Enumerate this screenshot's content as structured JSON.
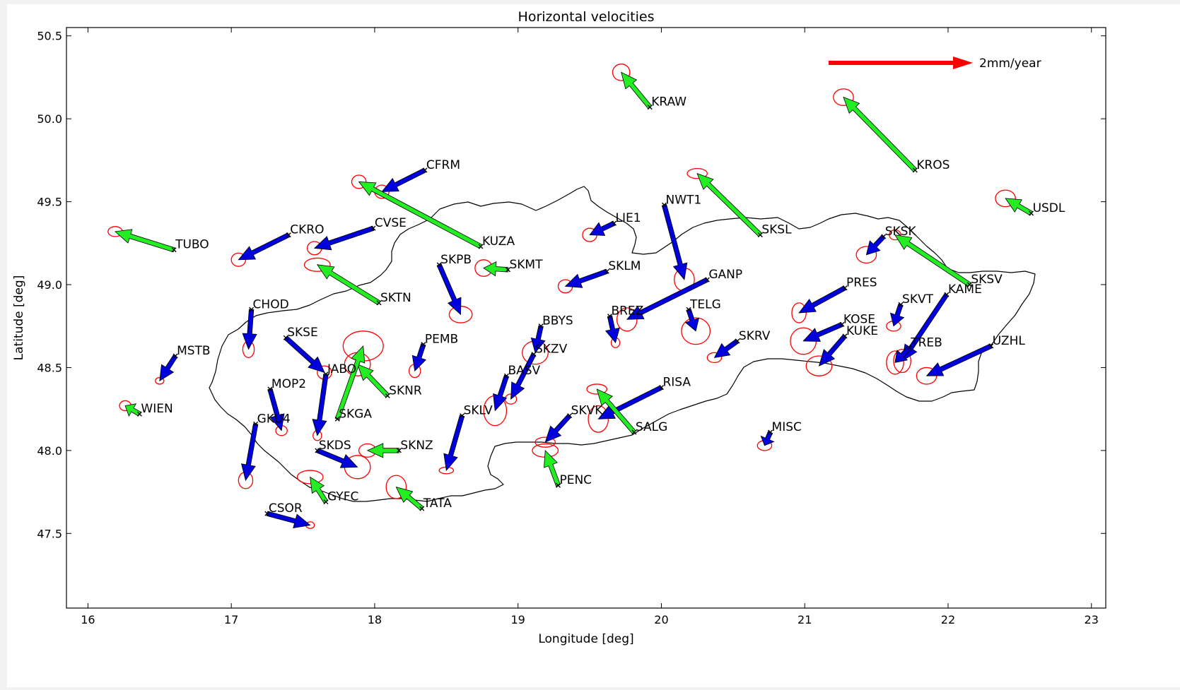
{
  "chart_data": {
    "type": "scatter",
    "title": "Horizontal velocities",
    "xlabel": "Longitude [deg]",
    "ylabel": "Latitude [deg]",
    "xlim": [
      15.85,
      23.1
    ],
    "ylim": [
      47.05,
      50.55
    ],
    "xticks": [
      16,
      17,
      18,
      19,
      20,
      21,
      22,
      23
    ],
    "yticks": [
      47.5,
      48.0,
      48.5,
      49.0,
      49.5,
      50.0,
      50.5
    ],
    "xtick_labels": [
      "16",
      "17",
      "18",
      "19",
      "20",
      "21",
      "22",
      "23"
    ],
    "ytick_labels": [
      "47.5",
      "48.0",
      "48.5",
      "49.0",
      "49.5",
      "50.0",
      "50.5"
    ],
    "grid": false,
    "scale_label": "2mm/year",
    "scale_color": "#ff0000",
    "colors": {
      "blue": "#0000dd",
      "green": "#22ee22",
      "ellipse": "#ff0000",
      "border": "#000000"
    },
    "stations": [
      {
        "name": "KRAW",
        "lon": 19.92,
        "lat": 50.07,
        "tip_lon": 19.72,
        "tip_lat": 50.28,
        "group": "green",
        "ell": [
          0.06,
          0.05
        ]
      },
      {
        "name": "KROS",
        "lon": 21.77,
        "lat": 49.69,
        "tip_lon": 21.27,
        "tip_lat": 50.13,
        "group": "green",
        "ell": [
          0.07,
          0.05
        ]
      },
      {
        "name": "USDL",
        "lon": 22.58,
        "lat": 49.43,
        "tip_lon": 22.4,
        "tip_lat": 49.52,
        "group": "green",
        "ell": [
          0.07,
          0.05
        ]
      },
      {
        "name": "CFRM",
        "lon": 18.35,
        "lat": 49.69,
        "tip_lon": 18.05,
        "tip_lat": 49.56,
        "group": "blue",
        "ell": [
          0.05,
          0.04
        ]
      },
      {
        "name": "KUZA",
        "lon": 18.74,
        "lat": 49.23,
        "tip_lon": 17.89,
        "tip_lat": 49.62,
        "group": "green",
        "ell": [
          0.05,
          0.04
        ]
      },
      {
        "name": "TUBO",
        "lon": 16.6,
        "lat": 49.21,
        "tip_lon": 16.19,
        "tip_lat": 49.32,
        "group": "green",
        "ell": [
          0.05,
          0.03
        ]
      },
      {
        "name": "CKRO",
        "lon": 17.4,
        "lat": 49.3,
        "tip_lon": 17.05,
        "tip_lat": 49.15,
        "group": "blue",
        "ell": [
          0.05,
          0.04
        ]
      },
      {
        "name": "CVSE",
        "lon": 17.99,
        "lat": 49.34,
        "tip_lon": 17.58,
        "tip_lat": 49.22,
        "group": "blue",
        "ell": [
          0.05,
          0.04
        ]
      },
      {
        "name": "LIE1",
        "lon": 19.67,
        "lat": 49.37,
        "tip_lon": 19.5,
        "tip_lat": 49.3,
        "group": "blue",
        "ell": [
          0.05,
          0.04
        ]
      },
      {
        "name": "NWT1",
        "lon": 20.02,
        "lat": 49.48,
        "tip_lon": 20.16,
        "tip_lat": 49.03,
        "group": "blue",
        "ell": [
          0.07,
          0.07
        ]
      },
      {
        "name": "SKSL",
        "lon": 20.69,
        "lat": 49.3,
        "tip_lon": 20.25,
        "tip_lat": 49.67,
        "group": "green",
        "ell": [
          0.07,
          0.03
        ]
      },
      {
        "name": "SKSK",
        "lon": 21.55,
        "lat": 49.29,
        "tip_lon": 21.43,
        "tip_lat": 49.18,
        "group": "blue",
        "ell": [
          0.07,
          0.05
        ]
      },
      {
        "name": "SKSV",
        "lon": 22.15,
        "lat": 49.0,
        "tip_lon": 21.63,
        "tip_lat": 49.3,
        "group": "green",
        "ell": [
          0.04,
          0.03
        ]
      },
      {
        "name": "SKPB",
        "lon": 18.45,
        "lat": 49.12,
        "tip_lon": 18.6,
        "tip_lat": 48.82,
        "group": "blue",
        "ell": [
          0.08,
          0.05
        ]
      },
      {
        "name": "SKMT",
        "lon": 18.93,
        "lat": 49.09,
        "tip_lon": 18.76,
        "tip_lat": 49.1,
        "group": "green",
        "ell": [
          0.06,
          0.05
        ]
      },
      {
        "name": "SKLM",
        "lon": 19.62,
        "lat": 49.08,
        "tip_lon": 19.33,
        "tip_lat": 48.99,
        "group": "blue",
        "ell": [
          0.05,
          0.04
        ]
      },
      {
        "name": "GANP",
        "lon": 20.32,
        "lat": 49.03,
        "tip_lon": 19.76,
        "tip_lat": 48.79,
        "group": "blue",
        "ell": [
          0.07,
          0.07
        ]
      },
      {
        "name": "SKTN",
        "lon": 18.03,
        "lat": 48.89,
        "tip_lon": 17.6,
        "tip_lat": 49.12,
        "group": "green",
        "ell": [
          0.09,
          0.04
        ]
      },
      {
        "name": "PRES",
        "lon": 21.28,
        "lat": 48.98,
        "tip_lon": 20.96,
        "tip_lat": 48.83,
        "group": "blue",
        "ell": [
          0.05,
          0.06
        ]
      },
      {
        "name": "SKVT",
        "lon": 21.67,
        "lat": 48.88,
        "tip_lon": 21.62,
        "tip_lat": 48.75,
        "group": "blue",
        "ell": [
          0.05,
          0.03
        ]
      },
      {
        "name": "KAME",
        "lon": 21.99,
        "lat": 48.94,
        "tip_lon": 21.68,
        "tip_lat": 48.54,
        "group": "blue",
        "ell": [
          0.06,
          0.07
        ]
      },
      {
        "name": "CHOD",
        "lon": 17.14,
        "lat": 48.85,
        "tip_lon": 17.12,
        "tip_lat": 48.61,
        "group": "blue",
        "ell": [
          0.04,
          0.05
        ]
      },
      {
        "name": "TELG",
        "lon": 20.19,
        "lat": 48.85,
        "tip_lon": 20.24,
        "tip_lat": 48.72,
        "group": "blue",
        "ell": [
          0.1,
          0.08
        ]
      },
      {
        "name": "BBYS",
        "lon": 19.16,
        "lat": 48.75,
        "tip_lon": 19.12,
        "tip_lat": 48.59,
        "group": "blue",
        "ell": [
          0.09,
          0.07
        ]
      },
      {
        "name": "BREZ",
        "lon": 19.64,
        "lat": 48.81,
        "tip_lon": 19.68,
        "tip_lat": 48.65,
        "group": "blue",
        "ell": [
          0.03,
          0.03
        ]
      },
      {
        "name": "KOSE",
        "lon": 21.26,
        "lat": 48.76,
        "tip_lon": 20.99,
        "tip_lat": 48.66,
        "group": "blue",
        "ell": [
          0.09,
          0.08
        ]
      },
      {
        "name": "KUKE",
        "lon": 21.28,
        "lat": 48.69,
        "tip_lon": 21.1,
        "tip_lat": 48.51,
        "group": "blue",
        "ell": [
          0.09,
          0.06
        ]
      },
      {
        "name": "SKRV",
        "lon": 20.53,
        "lat": 48.66,
        "tip_lon": 20.37,
        "tip_lat": 48.56,
        "group": "blue",
        "ell": [
          0.05,
          0.03
        ]
      },
      {
        "name": "SKSE",
        "lon": 17.38,
        "lat": 48.68,
        "tip_lon": 17.65,
        "tip_lat": 48.47,
        "group": "blue",
        "ell": [
          0.05,
          0.04
        ]
      },
      {
        "name": "PEMB",
        "lon": 18.34,
        "lat": 48.64,
        "tip_lon": 18.28,
        "tip_lat": 48.48,
        "group": "blue",
        "ell": [
          0.04,
          0.04
        ]
      },
      {
        "name": "SKZV",
        "lon": 19.11,
        "lat": 48.58,
        "tip_lon": 18.95,
        "tip_lat": 48.31,
        "group": "blue",
        "ell": [
          0.04,
          0.03
        ]
      },
      {
        "name": "TREB",
        "lon": 21.73,
        "lat": 48.62,
        "tip_lon": 21.63,
        "tip_lat": 48.53,
        "group": "blue",
        "ell": [
          0.06,
          0.07
        ]
      },
      {
        "name": "UZHL",
        "lon": 22.3,
        "lat": 48.63,
        "tip_lon": 21.85,
        "tip_lat": 48.45,
        "group": "blue",
        "ell": [
          0.07,
          0.05
        ]
      },
      {
        "name": "MSTB",
        "lon": 16.61,
        "lat": 48.57,
        "tip_lon": 16.5,
        "tip_lat": 48.42,
        "group": "blue",
        "ell": [
          0.03,
          0.02
        ]
      },
      {
        "name": "JABO",
        "lon": 17.66,
        "lat": 48.46,
        "tip_lon": 17.6,
        "tip_lat": 48.09,
        "group": "blue",
        "ell": [
          0.03,
          0.03
        ]
      },
      {
        "name": "SKNR",
        "lon": 18.09,
        "lat": 48.33,
        "tip_lon": 17.88,
        "tip_lat": 48.52,
        "group": "green",
        "ell": [
          0.09,
          0.07
        ]
      },
      {
        "name": "SKGA",
        "lon": 17.74,
        "lat": 48.19,
        "tip_lon": 17.92,
        "tip_lat": 48.63,
        "group": "green",
        "ell": [
          0.14,
          0.09
        ]
      },
      {
        "name": "BASV",
        "lon": 18.92,
        "lat": 48.45,
        "tip_lon": 18.84,
        "tip_lat": 48.24,
        "group": "blue",
        "ell": [
          0.08,
          0.09
        ]
      },
      {
        "name": "MOP2",
        "lon": 17.27,
        "lat": 48.37,
        "tip_lon": 17.35,
        "tip_lat": 48.12,
        "group": "blue",
        "ell": [
          0.04,
          0.03
        ]
      },
      {
        "name": "RISA",
        "lon": 20.0,
        "lat": 48.38,
        "tip_lon": 19.56,
        "tip_lat": 48.19,
        "group": "blue",
        "ell": [
          0.07,
          0.08
        ]
      },
      {
        "name": "WIEN",
        "lon": 16.36,
        "lat": 48.22,
        "tip_lon": 16.26,
        "tip_lat": 48.27,
        "group": "green",
        "ell": [
          0.04,
          0.03
        ]
      },
      {
        "name": "SKLV",
        "lon": 18.61,
        "lat": 48.21,
        "tip_lon": 18.5,
        "tip_lat": 47.88,
        "group": "blue",
        "ell": [
          0.05,
          0.02
        ]
      },
      {
        "name": "SKVK",
        "lon": 19.36,
        "lat": 48.21,
        "tip_lon": 19.19,
        "tip_lat": 48.05,
        "group": "blue",
        "ell": [
          0.07,
          0.03
        ]
      },
      {
        "name": "SALG",
        "lon": 19.81,
        "lat": 48.11,
        "tip_lon": 19.55,
        "tip_lat": 48.37,
        "group": "green",
        "ell": [
          0.07,
          0.03
        ]
      },
      {
        "name": "GKU4",
        "lon": 17.17,
        "lat": 48.16,
        "tip_lon": 17.1,
        "tip_lat": 47.82,
        "group": "blue",
        "ell": [
          0.05,
          0.05
        ]
      },
      {
        "name": "MISC",
        "lon": 20.76,
        "lat": 48.11,
        "tip_lon": 20.72,
        "tip_lat": 48.03,
        "group": "blue",
        "ell": [
          0.05,
          0.03
        ]
      },
      {
        "name": "SKDS",
        "lon": 17.6,
        "lat": 48.0,
        "tip_lon": 17.88,
        "tip_lat": 47.9,
        "group": "blue",
        "ell": [
          0.09,
          0.07
        ]
      },
      {
        "name": "SKNZ",
        "lon": 18.17,
        "lat": 48.0,
        "tip_lon": 17.95,
        "tip_lat": 48.0,
        "group": "green",
        "ell": [
          0.06,
          0.04
        ]
      },
      {
        "name": "PENC",
        "lon": 19.28,
        "lat": 47.79,
        "tip_lon": 19.19,
        "tip_lat": 48.0,
        "group": "green",
        "ell": [
          0.09,
          0.04
        ]
      },
      {
        "name": "GYFC",
        "lon": 17.66,
        "lat": 47.69,
        "tip_lon": 17.55,
        "tip_lat": 47.84,
        "group": "green",
        "ell": [
          0.09,
          0.04
        ]
      },
      {
        "name": "TATA",
        "lon": 18.33,
        "lat": 47.65,
        "tip_lon": 18.15,
        "tip_lat": 47.78,
        "group": "green",
        "ell": [
          0.07,
          0.07
        ]
      },
      {
        "name": "CSOR",
        "lon": 17.25,
        "lat": 47.62,
        "tip_lon": 17.55,
        "tip_lat": 47.55,
        "group": "blue",
        "ell": [
          0.03,
          0.02
        ]
      }
    ]
  }
}
